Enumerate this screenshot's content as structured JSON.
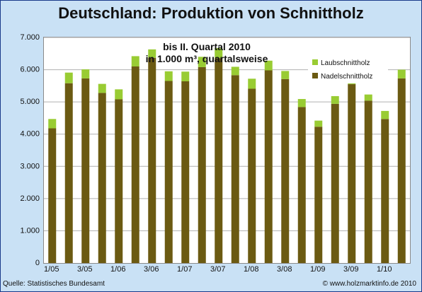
{
  "page": {
    "title": "Deutschland: Produktion von Schnittholz",
    "source": "Quelle: Statistisches Bundesamt",
    "copyright": "© www.holzmarktinfo.de 2010"
  },
  "colors": {
    "laub": "#99cc33",
    "nadel": "#6b5a12",
    "background": "#c9e1f5"
  },
  "chart_data": {
    "type": "bar",
    "stacked": true,
    "subtitle_line1": "bis II. Quartal 2010",
    "subtitle_line2": "in 1.000 m³, quartalsweise",
    "categories": [
      "1/05",
      "2/05",
      "3/05",
      "4/05",
      "1/06",
      "2/06",
      "3/06",
      "4/06",
      "1/07",
      "2/07",
      "3/07",
      "4/07",
      "1/08",
      "2/08",
      "3/08",
      "4/08",
      "1/09",
      "2/09",
      "3/09",
      "4/09",
      "1/10",
      "2/10"
    ],
    "x_tick_labels": [
      "1/05",
      "",
      "3/05",
      "",
      "1/06",
      "",
      "3/06",
      "",
      "1/07",
      "",
      "3/07",
      "",
      "1/08",
      "",
      "3/08",
      "",
      "1/09",
      "",
      "3/09",
      "",
      "1/10",
      ""
    ],
    "series": [
      {
        "name": "Nadelschnittholz",
        "values": [
          4180,
          5580,
          5730,
          5280,
          5080,
          6100,
          6370,
          5650,
          5640,
          6080,
          6360,
          5830,
          5410,
          5980,
          5710,
          4840,
          4230,
          4940,
          5550,
          5040,
          4470,
          5730
        ]
      },
      {
        "name": "Laubschnittholz",
        "values": [
          290,
          330,
          280,
          280,
          310,
          320,
          260,
          300,
          300,
          320,
          310,
          260,
          310,
          300,
          250,
          250,
          190,
          240,
          170,
          190,
          250,
          270
        ]
      }
    ],
    "legend": [
      "Laubschnittholz",
      "Nadelschnittholz"
    ],
    "legend_position": "top-right",
    "ylim": [
      0,
      7000
    ],
    "y_ticks": [
      0,
      1000,
      2000,
      3000,
      4000,
      5000,
      6000,
      7000
    ],
    "y_tick_labels": [
      "0",
      "1.000",
      "2.000",
      "3.000",
      "4.000",
      "5.000",
      "6.000",
      "7.000"
    ],
    "grid": true
  }
}
